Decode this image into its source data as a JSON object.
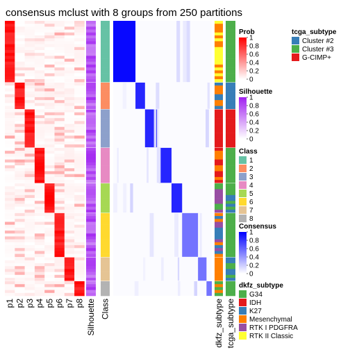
{
  "chart_data": {
    "type": "heatmap",
    "title": "consensus mclust with 8 groups from 250 partitions",
    "prob_columns": [
      "p1",
      "p2",
      "p3",
      "p4",
      "p5",
      "p6",
      "p7",
      "p8"
    ],
    "annotation_columns": [
      "Silhouette",
      "Class",
      "dkfz_subtype",
      "tcga_subtype"
    ],
    "class_groups": [
      {
        "class": "1",
        "color": "#66C2A5",
        "n_rows": 21
      },
      {
        "class": "2",
        "color": "#FC8D62",
        "n_rows": 9
      },
      {
        "class": "3",
        "color": "#8DA0CB",
        "n_rows": 13
      },
      {
        "class": "4",
        "color": "#E78AC3",
        "n_rows": 12
      },
      {
        "class": "5",
        "color": "#A6D854",
        "n_rows": 10
      },
      {
        "class": "6",
        "color": "#FFD92F",
        "n_rows": 15
      },
      {
        "class": "7",
        "color": "#E5C494",
        "n_rows": 8
      },
      {
        "class": "8",
        "color": "#B3B3B3",
        "n_rows": 5
      }
    ],
    "legends": {
      "prob": {
        "title": "Prob",
        "ticks": [
          "1",
          "0.8",
          "0.6",
          "0.4",
          "0.2",
          "0"
        ],
        "low": "#FFFFFF",
        "high": "#FF0000"
      },
      "silhouette": {
        "title": "Silhouette",
        "ticks": [
          "1",
          "0.8",
          "0.6",
          "0.4",
          "0.2",
          "0"
        ],
        "low": "#FFFFFF",
        "high": "#A020F0"
      },
      "class": {
        "title": "Class",
        "items": [
          {
            "label": "1",
            "color": "#66C2A5"
          },
          {
            "label": "2",
            "color": "#FC8D62"
          },
          {
            "label": "3",
            "color": "#8DA0CB"
          },
          {
            "label": "4",
            "color": "#E78AC3"
          },
          {
            "label": "5",
            "color": "#A6D854"
          },
          {
            "label": "6",
            "color": "#FFD92F"
          },
          {
            "label": "7",
            "color": "#E5C494"
          },
          {
            "label": "8",
            "color": "#B3B3B3"
          }
        ]
      },
      "consensus": {
        "title": "Consensus",
        "ticks": [
          "1",
          "0.8",
          "0.6",
          "0.4",
          "0.2",
          "0"
        ],
        "low": "#FFFFFF",
        "high": "#0000FF"
      },
      "dkfz_subtype": {
        "title": "dkfz_subtype",
        "items": [
          {
            "label": "G34",
            "color": "#4DAF4A"
          },
          {
            "label": "IDH",
            "color": "#E41A1C"
          },
          {
            "label": "K27",
            "color": "#377EB8"
          },
          {
            "label": "Mesenchymal",
            "color": "#FF7F00"
          },
          {
            "label": "RTK I PDGFRA",
            "color": "#984EA3"
          },
          {
            "label": "RTK II Classic",
            "color": "#FFFF33"
          }
        ]
      },
      "tcga_subtype": {
        "title": "tcga_subtype",
        "items": [
          {
            "label": "Cluster #2",
            "color": "#377EB8"
          },
          {
            "label": "Cluster #3",
            "color": "#4DAF4A"
          },
          {
            "label": "G-CIMP+",
            "color": "#E41A1C"
          }
        ]
      }
    }
  }
}
